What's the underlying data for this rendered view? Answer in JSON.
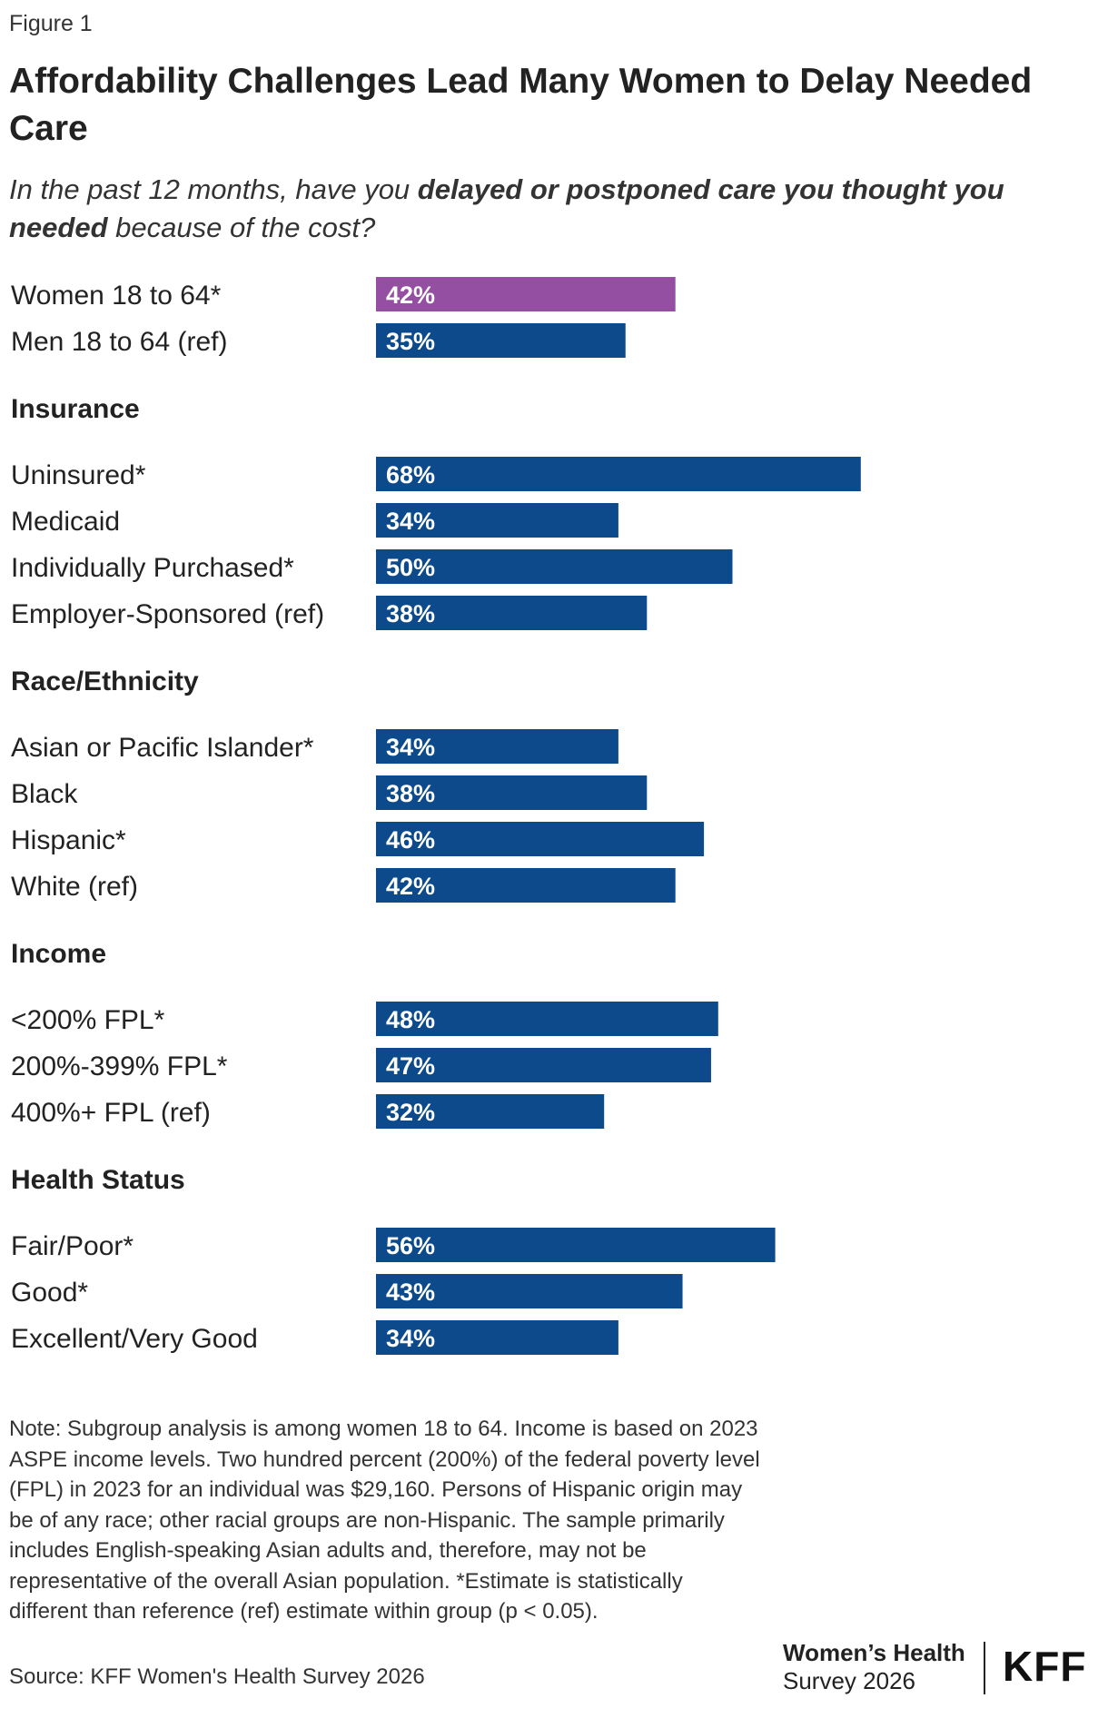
{
  "figure_label": "Figure 1",
  "title": "Affordability Challenges Lead Many Women to Delay Needed Care",
  "subtitle": {
    "part1": "In the past 12 months, have you ",
    "bold": "delayed or postponed care you thought you needed",
    "part2": " because of the cost?"
  },
  "colors": {
    "women": "#944fa3",
    "default": "#0c4a8b"
  },
  "chart_data": {
    "type": "bar",
    "orientation": "horizontal",
    "xlim": [
      0,
      100
    ],
    "value_suffix": "%",
    "groups": [
      {
        "label": "",
        "items": [
          {
            "category": "Women 18 to 64*",
            "value": 42,
            "highlight": true
          },
          {
            "category": "Men 18 to 64 (ref)",
            "value": 35
          }
        ]
      },
      {
        "label": "Insurance",
        "items": [
          {
            "category": "Uninsured*",
            "value": 68
          },
          {
            "category": "Medicaid",
            "value": 34
          },
          {
            "category": "Individually Purchased*",
            "value": 50
          },
          {
            "category": "Employer-Sponsored (ref)",
            "value": 38
          }
        ]
      },
      {
        "label": "Race/Ethnicity",
        "items": [
          {
            "category": "Asian or Pacific Islander*",
            "value": 34
          },
          {
            "category": "Black",
            "value": 38
          },
          {
            "category": "Hispanic*",
            "value": 46
          },
          {
            "category": "White (ref)",
            "value": 42
          }
        ]
      },
      {
        "label": "Income",
        "items": [
          {
            "category": "<200% FPL*",
            "value": 48
          },
          {
            "category": "200%-399% FPL*",
            "value": 47
          },
          {
            "category": "400%+ FPL (ref)",
            "value": 32
          }
        ]
      },
      {
        "label": "Health Status",
        "items": [
          {
            "category": "Fair/Poor*",
            "value": 56
          },
          {
            "category": "Good*",
            "value": 43
          },
          {
            "category": "Excellent/Very Good",
            "value": 34
          }
        ]
      }
    ]
  },
  "note": "Note: Subgroup analysis is among women 18 to 64. Income is based on 2023 ASPE income levels. Two hundred percent (200%) of the federal poverty level (FPL) in 2023 for an individual was $29,160. Persons of Hispanic origin may be of any race; other racial groups are non-Hispanic. The sample primarily includes English-speaking Asian adults and, therefore, may not be representative of the overall Asian population. *Estimate is statistically different than reference (ref) estimate within group (p < 0.05).",
  "source": "Source: KFF Women's Health Survey 2026",
  "branding": {
    "survey_line1": "Women’s Health",
    "survey_line2": "Survey 2026",
    "logo": "KFF"
  }
}
